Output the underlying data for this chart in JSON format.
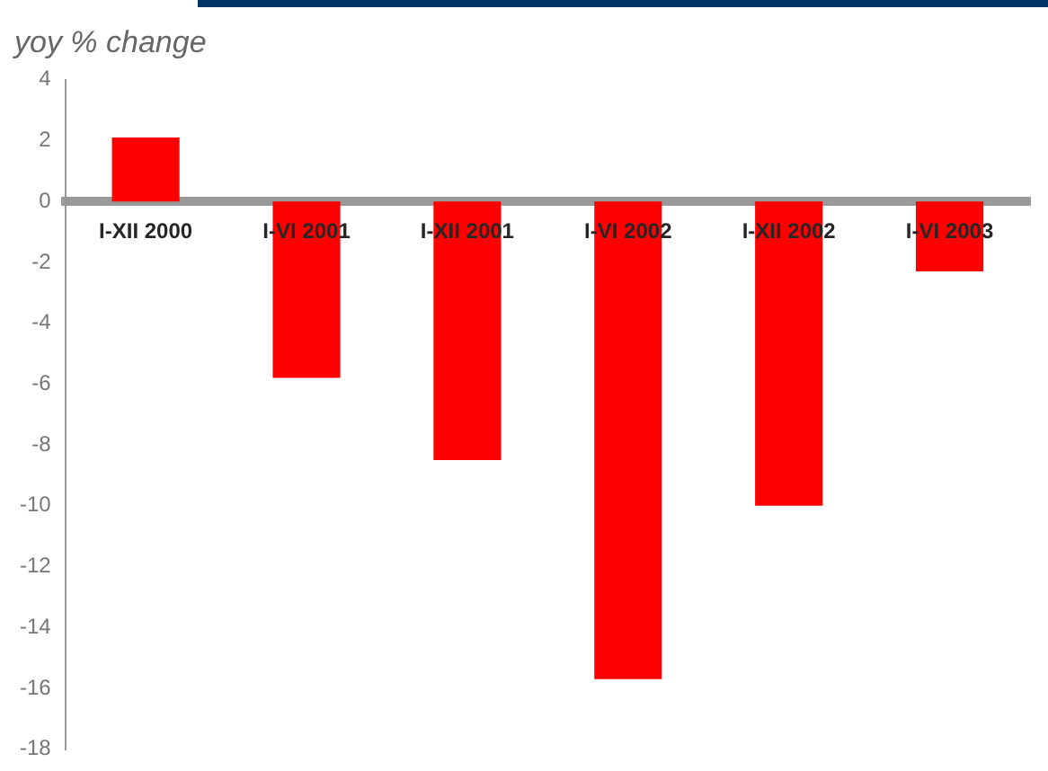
{
  "chart_data": {
    "type": "bar",
    "ylabel": "yoy % change",
    "categories": [
      "I-XII 2000",
      "I-VI 2001",
      "I-XII 2001",
      "I-VI 2002",
      "I-XII 2002",
      "I-VI 2003"
    ],
    "values": [
      2.1,
      -5.8,
      -8.5,
      -15.7,
      -10.0,
      -2.3
    ],
    "color": "#ff0000",
    "ylim": [
      -18,
      4
    ],
    "yticks": [
      -18,
      -16,
      -14,
      -12,
      -10,
      -8,
      -6,
      -4,
      -2,
      0,
      2,
      4
    ],
    "grid": false,
    "legend": false
  }
}
